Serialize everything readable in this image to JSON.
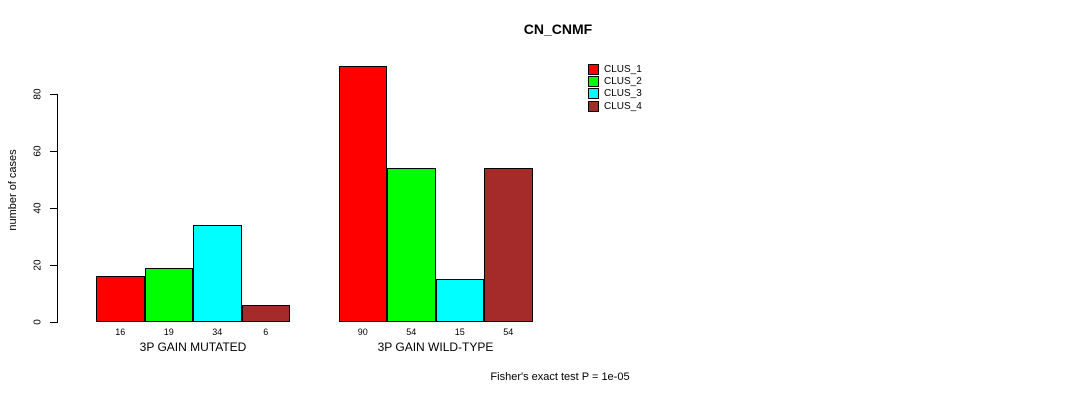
{
  "title": "CN_CNMF",
  "y_axis": {
    "label": "number of cases"
  },
  "footer": "Fisher's exact test P = 1e-05",
  "legend": {
    "items": [
      {
        "label": "CLUS_1",
        "color": "#ff0000"
      },
      {
        "label": "CLUS_2",
        "color": "#00ff00"
      },
      {
        "label": "CLUS_3",
        "color": "#00ffff"
      },
      {
        "label": "CLUS_4",
        "color": "#a52a2a"
      }
    ]
  },
  "chart_data": {
    "type": "bar",
    "title": "CN_CNMF",
    "xlabel": "",
    "ylabel": "number of cases",
    "categories": [
      "3P GAIN MUTATED",
      "3P GAIN WILD-TYPE"
    ],
    "series": [
      {
        "name": "CLUS_1",
        "color": "#ff0000",
        "values": [
          16,
          90
        ]
      },
      {
        "name": "CLUS_2",
        "color": "#00ff00",
        "values": [
          19,
          54
        ]
      },
      {
        "name": "CLUS_3",
        "color": "#00ffff",
        "values": [
          34,
          15
        ]
      },
      {
        "name": "CLUS_4",
        "color": "#a52a2a",
        "values": [
          6,
          54
        ]
      }
    ],
    "bar_value_labels": [
      [
        16,
        19,
        34,
        6
      ],
      [
        90,
        54,
        15,
        54
      ]
    ],
    "yticks": [
      0,
      20,
      40,
      60,
      80
    ],
    "ylim": [
      0,
      91
    ],
    "grid": false,
    "legend_position": "top-right",
    "annotation": "Fisher's exact test P = 1e-05"
  }
}
